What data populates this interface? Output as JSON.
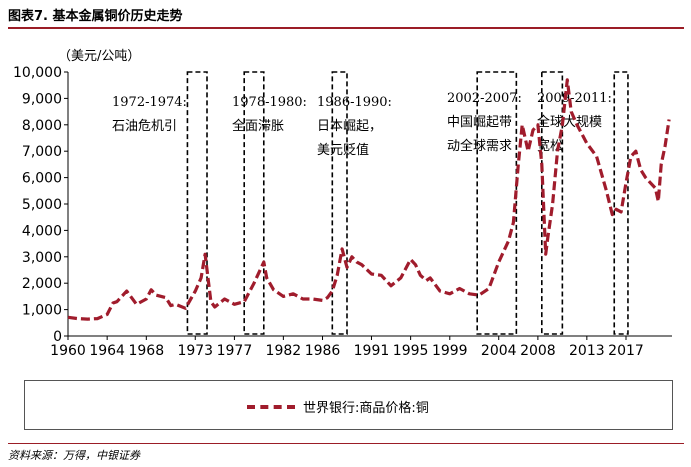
{
  "figure_title": "图表7. 基本金属铜价历史走势",
  "source_note": "资料来源：万得，中银证券",
  "chart_data": {
    "type": "line",
    "title": "",
    "unit_label": "（美元/公吨）",
    "xlabel": "",
    "ylabel": "",
    "ylim": [
      0,
      10000
    ],
    "xlim": [
      1960,
      2021.7
    ],
    "y_ticks": [
      0,
      1000,
      2000,
      3000,
      4000,
      5000,
      6000,
      7000,
      8000,
      9000,
      10000
    ],
    "y_tick_labels": [
      "0",
      "1,000",
      "2,000",
      "3,000",
      "4,000",
      "5,000",
      "6,000",
      "7,000",
      "8,000",
      "9,000",
      "10,000"
    ],
    "x_ticks": [
      1960,
      1964,
      1968,
      1973,
      1977,
      1982,
      1986,
      1991,
      1995,
      1999,
      2004,
      2008,
      2013,
      2017
    ],
    "x_tick_labels": [
      "1960",
      "1964",
      "1968",
      "1973",
      "1977",
      "1982",
      "1986",
      "1991",
      "1995",
      "1999",
      "2004",
      "2008",
      "2013",
      "2017"
    ],
    "grid": false,
    "legend_position": "bottom",
    "series": [
      {
        "name": "世界银行:商品价格:铜",
        "color": "#a01c2c",
        "style": "dashed",
        "x": [
          1960,
          1961,
          1962,
          1963,
          1964,
          1964.6,
          1965,
          1966,
          1966.5,
          1967,
          1968,
          1968.5,
          1969,
          1970,
          1970.5,
          1971,
          1972,
          1973,
          1973.6,
          1974,
          1974.3,
          1974.6,
          1975,
          1976,
          1977,
          1978,
          1979,
          1980,
          1980.3,
          1981,
          1982,
          1983,
          1984,
          1985,
          1986,
          1986.5,
          1987,
          1987.5,
          1988,
          1988.5,
          1989,
          1989.5,
          1990,
          1991,
          1992,
          1993,
          1994,
          1995,
          1995.5,
          1996,
          1996.6,
          1997,
          1998,
          1999,
          2000,
          2001,
          2002,
          2003,
          2004,
          2005,
          2005.5,
          2006,
          2006.4,
          2007,
          2007.5,
          2008,
          2008.4,
          2008.8,
          2009,
          2009.5,
          2010,
          2010.5,
          2011,
          2011.4,
          2012,
          2013,
          2014,
          2015,
          2015.6,
          2016,
          2016.5,
          2017,
          2017.5,
          2018,
          2018.5,
          2019,
          2019.5,
          2020,
          2020.3,
          2020.6,
          2021,
          2021.4
        ],
        "y": [
          710,
          660,
          640,
          660,
          820,
          1250,
          1300,
          1700,
          1450,
          1200,
          1400,
          1750,
          1550,
          1450,
          1150,
          1200,
          1050,
          1700,
          2200,
          3100,
          2200,
          1300,
          1100,
          1400,
          1200,
          1300,
          2000,
          2800,
          2200,
          1750,
          1500,
          1600,
          1400,
          1400,
          1350,
          1450,
          1700,
          2300,
          3300,
          2600,
          3000,
          2800,
          2700,
          2350,
          2300,
          1900,
          2200,
          2900,
          2700,
          2300,
          2100,
          2200,
          1700,
          1600,
          1800,
          1600,
          1550,
          1800,
          2800,
          3600,
          4300,
          6500,
          8000,
          7000,
          7800,
          8000,
          6500,
          3100,
          3700,
          5000,
          7000,
          8000,
          9700,
          8500,
          8000,
          7300,
          6800,
          5500,
          4600,
          4800,
          4700,
          5800,
          6800,
          7000,
          6300,
          6000,
          5800,
          5600,
          5100,
          6500,
          7200,
          8200
        ]
      }
    ],
    "annotations": [
      {
        "years": "1972-1974:",
        "text": "石油危机引"
      },
      {
        "years": "1978-1980:",
        "text": "全面滞胀"
      },
      {
        "years": "1986-1990:",
        "text": "日本崛起，",
        "text2": "美元贬值"
      },
      {
        "years": "2002-2007:",
        "text": "中国崛起带",
        "text2": "动全球需求"
      },
      {
        "years": "2009-2011:",
        "text": "全球大规模",
        "text2": "宽松"
      }
    ]
  }
}
